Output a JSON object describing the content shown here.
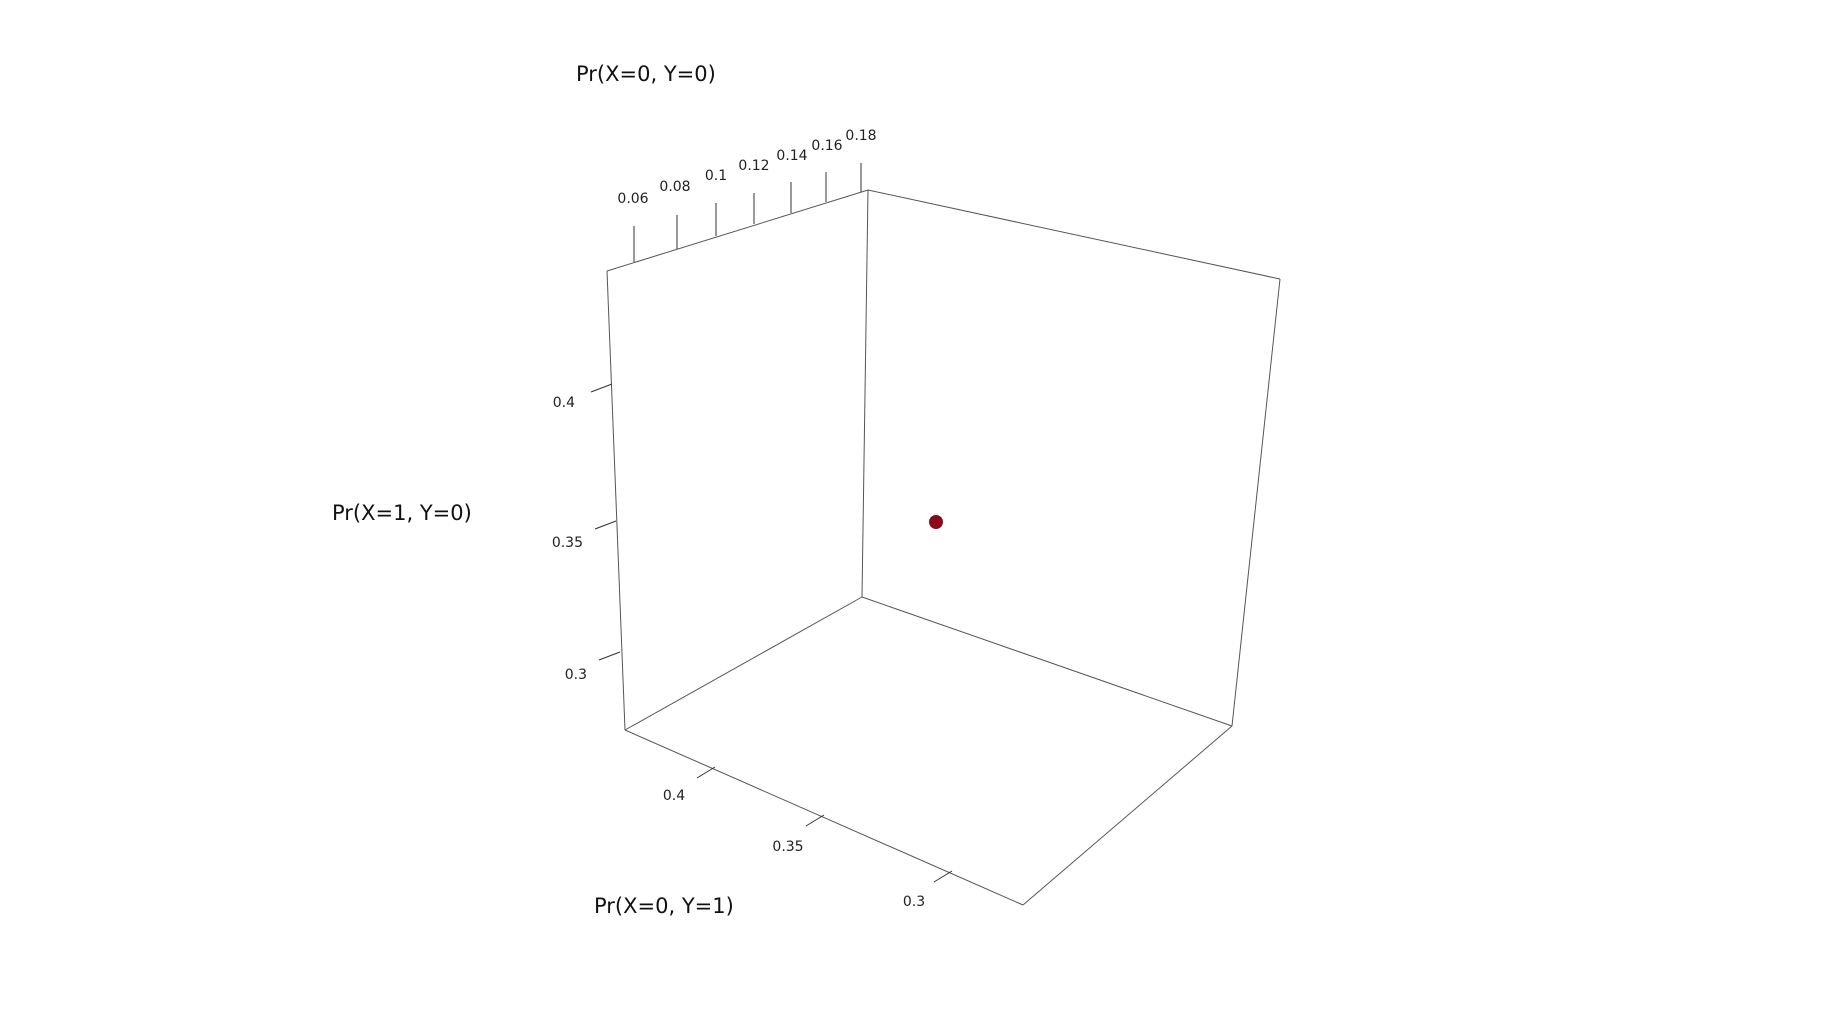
{
  "chart_data": {
    "type": "scatter",
    "projection": "3d",
    "axes": {
      "x": {
        "label": "Pr(X=0, Y=0)",
        "ticks": [
          "0.06",
          "0.08",
          "0.1",
          "0.12",
          "0.14",
          "0.16",
          "0.18"
        ]
      },
      "y": {
        "label": "Pr(X=1, Y=0)",
        "ticks": [
          "0.4",
          "0.35",
          "0.3"
        ]
      },
      "z": {
        "label": "Pr(X=0, Y=1)",
        "ticks": [
          "0.4",
          "0.35",
          "0.3"
        ]
      }
    },
    "points": [
      {
        "x": 0.17,
        "y": 0.35,
        "z": 0.33,
        "color": "#8b0a1a"
      }
    ],
    "grid": false
  }
}
